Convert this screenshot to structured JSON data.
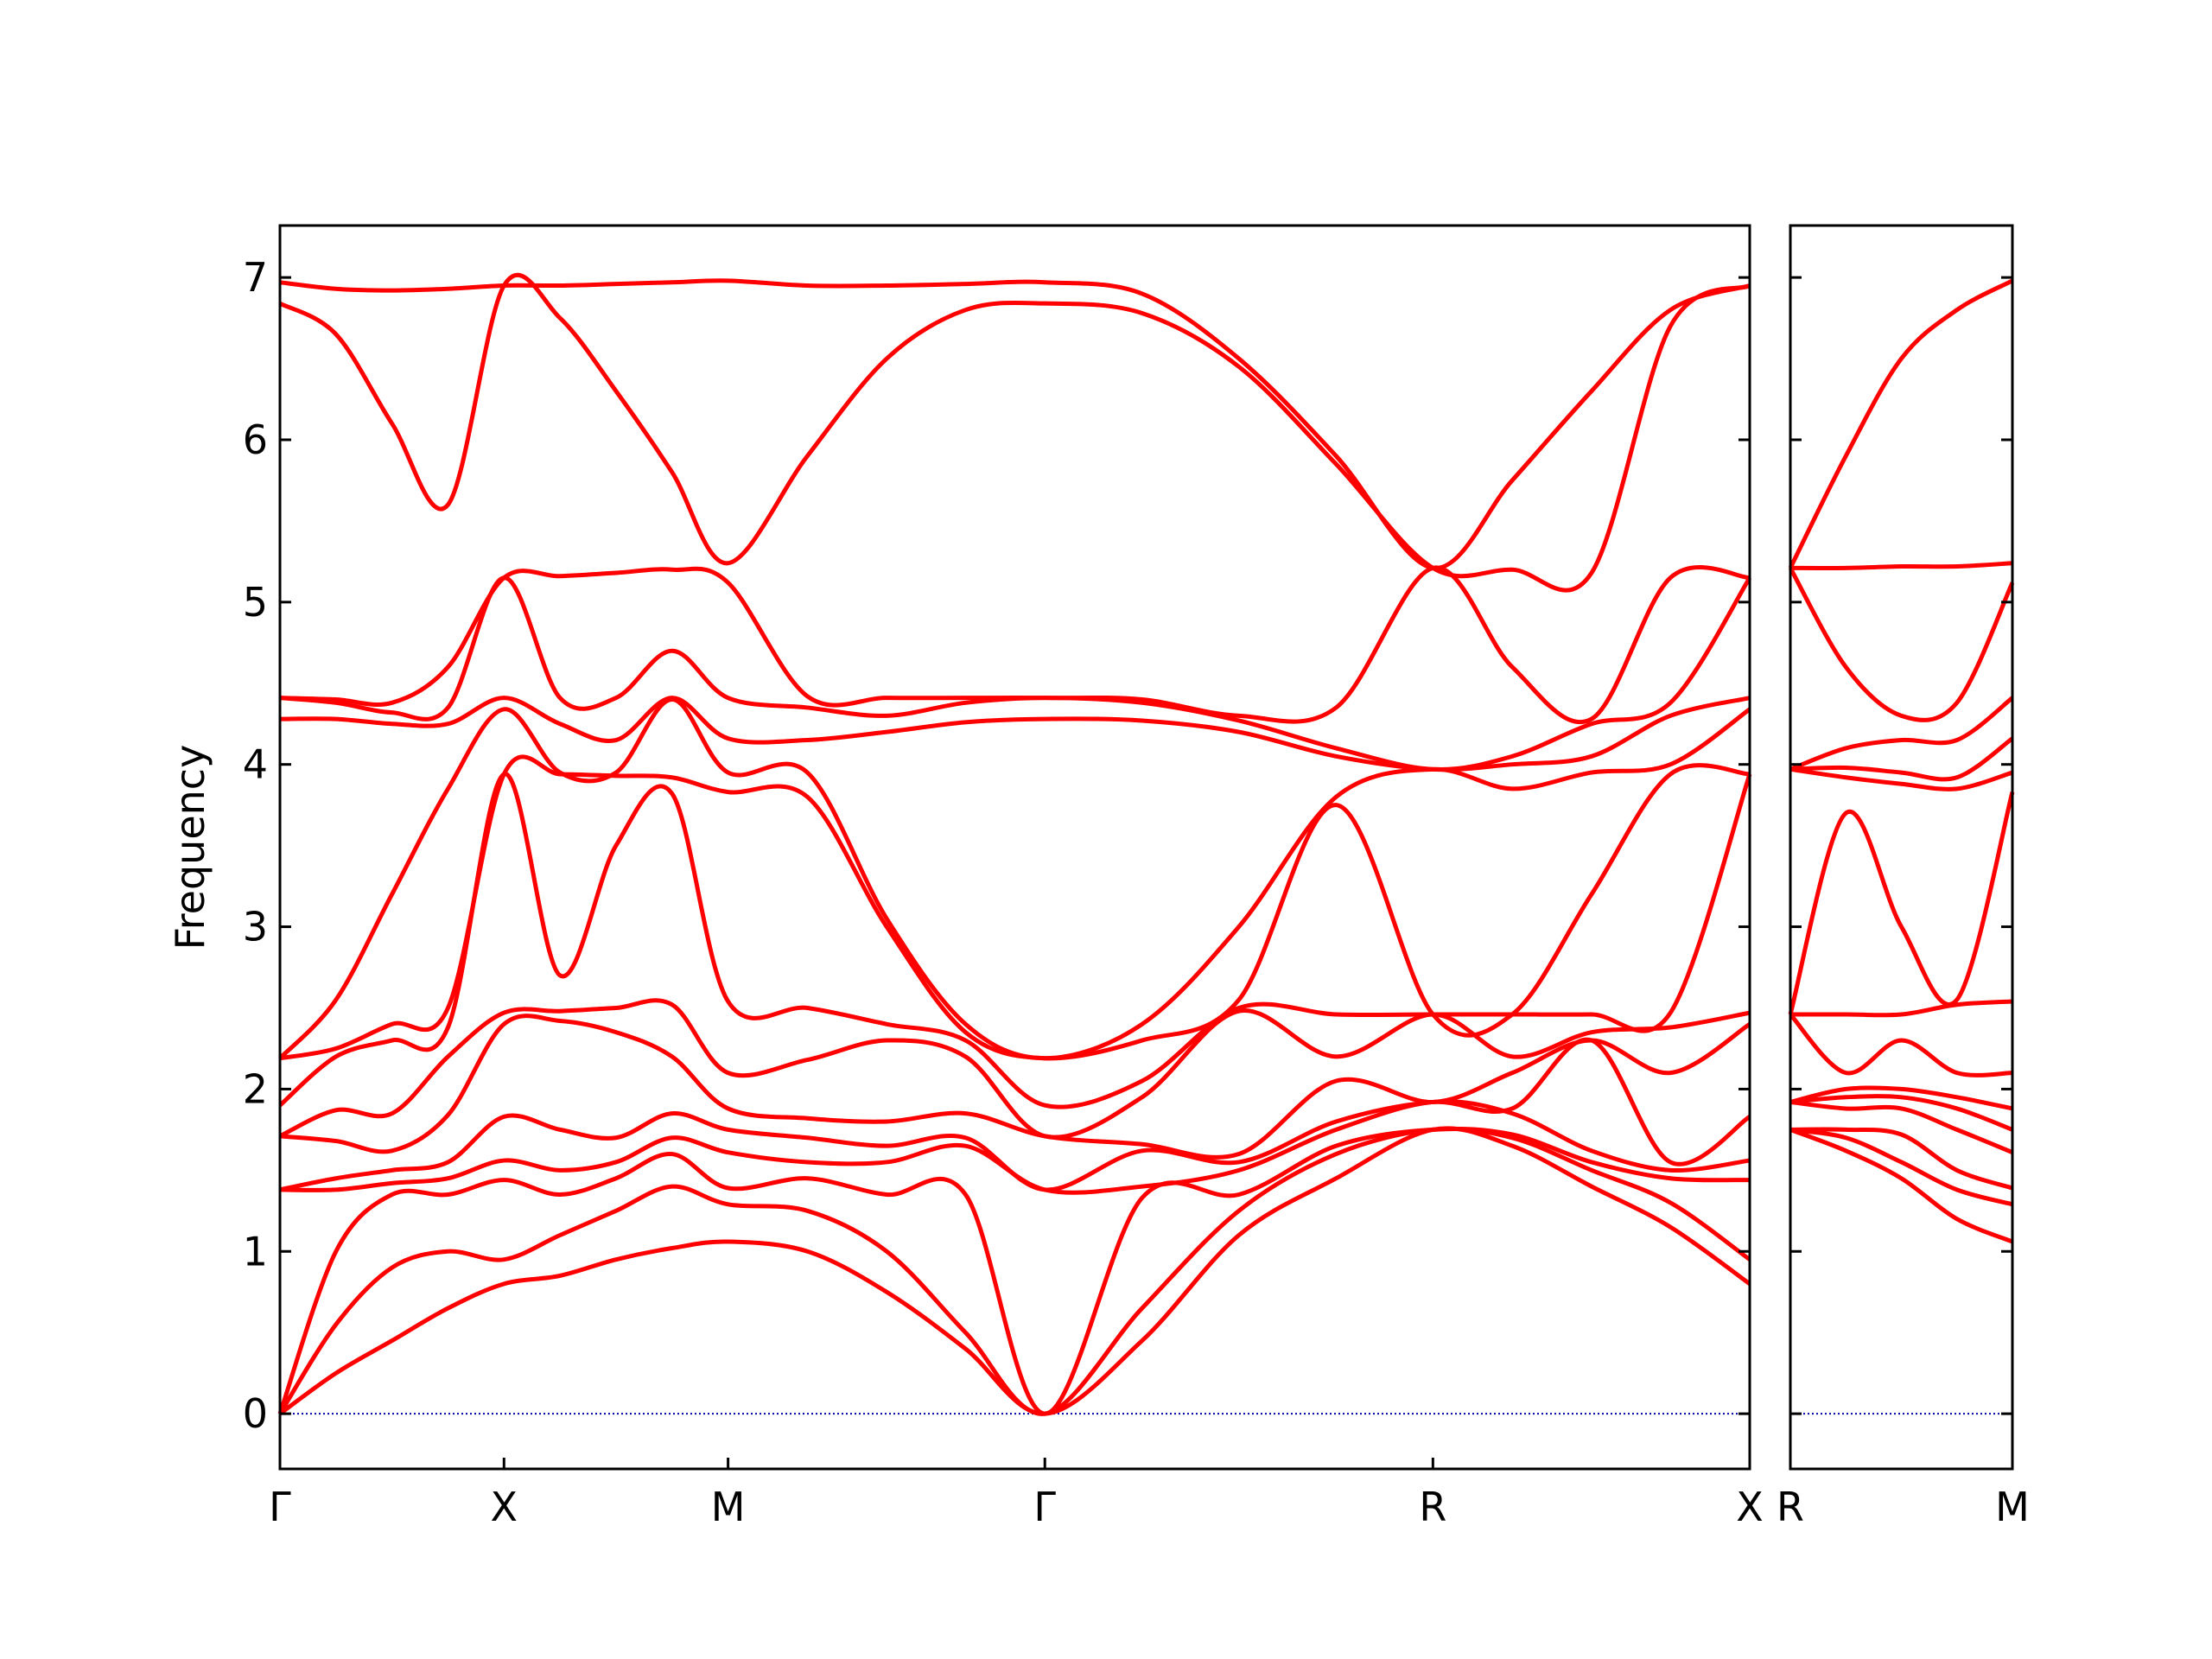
{
  "chart_data": [
    {
      "type": "line",
      "ylabel": "Frequency",
      "color": "#ff0000",
      "x": [
        0,
        0.125,
        0.25,
        0.375,
        0.5,
        0.625,
        0.75,
        0.875,
        1.0,
        1.177,
        1.354,
        1.53,
        1.707,
        1.924,
        2.14,
        2.357,
        2.573,
        2.75,
        2.927,
        3.103,
        3.28
      ],
      "values": [
        [
          0,
          0,
          0,
          1.38,
          1.38,
          1.71,
          1.71,
          1.9,
          2.19,
          2.19,
          4.28,
          4.41,
          4.41,
          6.84,
          6.97
        ],
        [
          0.25,
          0.55,
          1.0,
          1.38,
          1.45,
          1.68,
          1.87,
          2.2,
          2.25,
          2.55,
          4.28,
          4.38,
          4.4,
          6.65,
          6.93
        ],
        [
          0.45,
          0.9,
          1.35,
          1.42,
          1.5,
          1.62,
          1.85,
          2.3,
          2.4,
          3.2,
          4.25,
          4.32,
          4.38,
          6.1,
          6.92
        ],
        [
          0.65,
          1.0,
          1.35,
          1.45,
          1.55,
          1.84,
          2.2,
          2.38,
          2.5,
          3.85,
          4.25,
          4.35,
          4.6,
          5.6,
          6.93
        ],
        [
          0.8,
          0.95,
          1.44,
          1.56,
          1.83,
          2.4,
          2.47,
          3.94,
          3.94,
          4.34,
          4.41,
          5.15,
          5.15,
          6.95,
          6.95
        ],
        [
          0.85,
          1.1,
          1.35,
          1.5,
          1.75,
          2.42,
          2.48,
          2.7,
          3.94,
          3.95,
          4.25,
          4.41,
          5.16,
          6.75,
          6.95
        ],
        [
          0.95,
          1.25,
          1.45,
          1.55,
          1.7,
          2.35,
          2.5,
          3.5,
          3.93,
          3.95,
          4.15,
          4.41,
          5.18,
          6.3,
          6.96
        ],
        [
          1.02,
          1.4,
          1.6,
          1.7,
          1.85,
          2.2,
          2.52,
          3.82,
          3.92,
          4.4,
          4.41,
          4.7,
          5.2,
          5.8,
          6.97
        ],
        [
          1.06,
          1.29,
          1.39,
          1.61,
          1.75,
          1.88,
          2.1,
          2.54,
          3.83,
          3.95,
          4.16,
          4.41,
          5.12,
          5.24,
          6.98
        ],
        [
          1.0,
          1.25,
          1.45,
          1.55,
          1.7,
          1.82,
          2.18,
          2.5,
          3.8,
          3.95,
          4.15,
          4.35,
          4.42,
          5.9,
          6.95
        ],
        [
          0.75,
          1.0,
          1.35,
          1.55,
          1.65,
          1.8,
          2.3,
          2.4,
          3.0,
          3.05,
          4.2,
          4.3,
          4.41,
          6.5,
          6.95
        ],
        [
          0.4,
          0.5,
          1.35,
          1.65,
          1.7,
          1.85,
          2.2,
          2.3,
          2.35,
          2.4,
          4.26,
          4.38,
          4.41,
          6.8,
          6.96
        ],
        [
          0,
          0,
          0,
          1.38,
          1.38,
          1.71,
          1.71,
          1.9,
          2.19,
          2.19,
          4.28,
          4.41,
          4.41,
          6.84,
          6.97
        ],
        [
          0.45,
          0.65,
          1.33,
          1.4,
          1.62,
          1.66,
          1.95,
          2.05,
          2.3,
          2.4,
          4.27,
          4.38,
          4.4,
          6.78,
          6.9
        ],
        [
          1.1,
          1.25,
          1.35,
          1.5,
          1.55,
          1.6,
          2.48,
          2.5,
          2.55,
          3.0,
          4.2,
          4.27,
          4.3,
          6.45,
          6.5
        ],
        [
          1.45,
          1.6,
          1.65,
          1.75,
          1.8,
          2.05,
          2.2,
          2.46,
          3.75,
          3.8,
          4.05,
          4.1,
          4.35,
          5.85,
          5.9
        ],
        [
          1.75,
          1.75,
          1.75,
          1.92,
          1.92,
          1.92,
          2.46,
          2.46,
          2.46,
          3.97,
          3.97,
          3.97,
          5.21,
          5.21,
          5.21
        ],
        [
          1.65,
          1.7,
          1.72,
          1.85,
          1.88,
          2.1,
          2.2,
          2.46,
          2.46,
          3.85,
          4.0,
          4.05,
          4.6,
          5.2,
          5.75
        ],
        [
          1.4,
          1.5,
          1.55,
          1.62,
          2.3,
          2.3,
          2.35,
          2.46,
          3.2,
          3.95,
          4.05,
          4.25,
          4.28,
          5.18,
          6.3
        ],
        [
          1.15,
          1.3,
          1.45,
          1.5,
          1.55,
          2.1,
          2.38,
          2.47,
          3.94,
          4.0,
          4.3,
          4.38,
          5.15,
          6.7,
          6.8
        ],
        [
          0.8,
          0.95,
          1.44,
          1.56,
          1.83,
          2.4,
          2.47,
          3.94,
          3.94,
          4.34,
          4.41,
          5.15,
          5.15,
          6.95,
          6.95
        ]
      ],
      "xlim": [
        0,
        3.28
      ],
      "xticks": [
        {
          "value": 0,
          "label": "Γ"
        },
        {
          "value": 0.5,
          "label": "X"
        },
        {
          "value": 1.0,
          "label": "M"
        },
        {
          "value": 1.707,
          "label": "Γ"
        },
        {
          "value": 2.573,
          "label": "R"
        },
        {
          "value": 3.28,
          "label": "X"
        }
      ],
      "ylim": [
        -0.34,
        7.32
      ],
      "yticks": [
        0,
        1,
        2,
        3,
        4,
        5,
        6,
        7
      ],
      "ytick_labels": true,
      "hlines": [
        0
      ],
      "hline_color": "#0000aa"
    },
    {
      "type": "line",
      "color": "#ff0000",
      "x": [
        0,
        0.125,
        0.25,
        0.375,
        0.5
      ],
      "values": [
        [
          1.75,
          1.75,
          1.75,
          1.92,
          1.92,
          1.92,
          2.46,
          2.46,
          2.46,
          3.97,
          3.97,
          3.97,
          5.21,
          5.21,
          5.21
        ],
        [
          1.62,
          1.7,
          1.75,
          1.88,
          1.95,
          2.0,
          2.1,
          2.46,
          3.7,
          3.92,
          3.98,
          4.1,
          4.6,
          5.21,
          5.9
        ],
        [
          1.45,
          1.55,
          1.72,
          1.88,
          1.95,
          2.0,
          2.3,
          2.46,
          3.0,
          3.88,
          3.95,
          4.15,
          4.3,
          5.22,
          6.5
        ],
        [
          1.2,
          1.38,
          1.5,
          1.75,
          1.88,
          1.95,
          2.1,
          2.52,
          2.55,
          3.85,
          3.92,
          4.15,
          4.38,
          5.22,
          6.8
        ],
        [
          1.06,
          1.29,
          1.39,
          1.61,
          1.75,
          1.88,
          2.1,
          2.54,
          3.83,
          3.95,
          4.16,
          4.41,
          5.12,
          5.24,
          6.98
        ]
      ],
      "xlim": [
        0,
        0.5
      ],
      "xticks": [
        {
          "value": 0,
          "label": "R"
        },
        {
          "value": 0.5,
          "label": "M"
        }
      ],
      "ylim": [
        -0.34,
        7.32
      ],
      "yticks": [
        0,
        1,
        2,
        3,
        4,
        5,
        6,
        7
      ],
      "ytick_labels": false,
      "hlines": [
        0
      ],
      "hline_color": "#0000aa"
    }
  ]
}
